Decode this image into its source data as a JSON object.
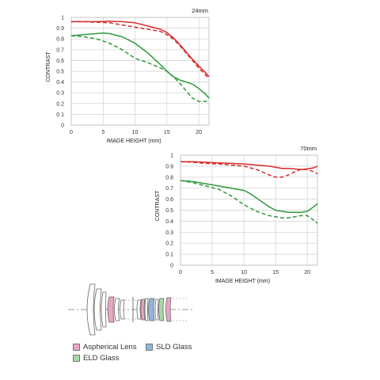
{
  "chart_data": [
    {
      "type": "line",
      "title": "24mm",
      "xlabel": "IMAGE HEIGHT (mm)",
      "ylabel": "CONTRAST",
      "xlim": [
        0,
        21.6
      ],
      "ylim": [
        0,
        1
      ],
      "xticks": [
        "0",
        "5",
        "10",
        "15",
        "20"
      ],
      "yticks": [
        "0",
        "0.1",
        "0.2",
        "0.3",
        "0.4",
        "0.5",
        "0.6",
        "0.7",
        "0.8",
        "0.9",
        "1"
      ],
      "grid": true,
      "series": [
        {
          "color": "#d62b2b",
          "style": "solid",
          "x": [
            0,
            2,
            4,
            6,
            8,
            10,
            12,
            14,
            15,
            16,
            17,
            18,
            19,
            20,
            21,
            21.6
          ],
          "y": [
            0.96,
            0.96,
            0.96,
            0.965,
            0.96,
            0.95,
            0.92,
            0.89,
            0.86,
            0.81,
            0.75,
            0.68,
            0.61,
            0.55,
            0.49,
            0.45
          ]
        },
        {
          "color": "#d62b2b",
          "style": "dashed",
          "x": [
            0,
            2,
            4,
            6,
            8,
            10,
            12,
            14,
            15,
            16,
            17,
            18,
            19,
            20,
            21,
            21.6
          ],
          "y": [
            0.96,
            0.96,
            0.955,
            0.95,
            0.93,
            0.91,
            0.89,
            0.87,
            0.84,
            0.8,
            0.74,
            0.67,
            0.6,
            0.53,
            0.47,
            0.43
          ]
        },
        {
          "color": "#2e9a3b",
          "style": "solid",
          "x": [
            0,
            2,
            4,
            5,
            6,
            8,
            10,
            12,
            14,
            15,
            16,
            17,
            18,
            19,
            20,
            21,
            21.6
          ],
          "y": [
            0.83,
            0.84,
            0.85,
            0.855,
            0.85,
            0.82,
            0.76,
            0.67,
            0.56,
            0.5,
            0.45,
            0.42,
            0.4,
            0.38,
            0.34,
            0.29,
            0.25
          ]
        },
        {
          "color": "#2e9a3b",
          "style": "dashed",
          "x": [
            0,
            2,
            4,
            6,
            8,
            10,
            12,
            14,
            15,
            16,
            17,
            18,
            19,
            20,
            21,
            21.6
          ],
          "y": [
            0.83,
            0.82,
            0.8,
            0.76,
            0.7,
            0.62,
            0.58,
            0.53,
            0.5,
            0.45,
            0.39,
            0.32,
            0.25,
            0.22,
            0.22,
            0.23
          ]
        }
      ]
    },
    {
      "type": "line",
      "title": "70mm",
      "xlabel": "IMAGE HEIGHT (mm)",
      "ylabel": "CONTRAST",
      "xlim": [
        0,
        21.6
      ],
      "ylim": [
        0,
        1
      ],
      "xticks": [
        "0",
        "5",
        "10",
        "15",
        "20"
      ],
      "yticks": [
        "0",
        "0.1",
        "0.2",
        "0.3",
        "0.4",
        "0.5",
        "0.6",
        "0.7",
        "0.8",
        "0.9",
        "1"
      ],
      "grid": true,
      "series": [
        {
          "color": "#d62b2b",
          "style": "solid",
          "x": [
            0,
            2,
            4,
            6,
            8,
            10,
            12,
            14,
            15,
            16,
            17,
            18,
            19,
            20,
            21,
            21.6
          ],
          "y": [
            0.94,
            0.94,
            0.935,
            0.93,
            0.925,
            0.92,
            0.91,
            0.9,
            0.89,
            0.88,
            0.88,
            0.875,
            0.87,
            0.875,
            0.885,
            0.9
          ]
        },
        {
          "color": "#d62b2b",
          "style": "dashed",
          "x": [
            0,
            2,
            4,
            6,
            8,
            10,
            12,
            14,
            15,
            16,
            17,
            18,
            19,
            20,
            21,
            21.6
          ],
          "y": [
            0.94,
            0.935,
            0.925,
            0.92,
            0.91,
            0.9,
            0.87,
            0.82,
            0.8,
            0.8,
            0.82,
            0.85,
            0.87,
            0.87,
            0.85,
            0.83
          ]
        },
        {
          "color": "#2e9a3b",
          "style": "solid",
          "x": [
            0,
            2,
            4,
            6,
            8,
            10,
            11,
            12,
            13,
            14,
            15,
            16,
            17,
            18,
            19,
            20,
            21,
            21.6
          ],
          "y": [
            0.77,
            0.76,
            0.74,
            0.72,
            0.7,
            0.68,
            0.65,
            0.61,
            0.57,
            0.53,
            0.5,
            0.49,
            0.48,
            0.48,
            0.48,
            0.49,
            0.53,
            0.56
          ]
        },
        {
          "color": "#2e9a3b",
          "style": "dashed",
          "x": [
            0,
            2,
            4,
            6,
            8,
            10,
            12,
            14,
            15,
            16,
            17,
            18,
            19,
            20,
            21,
            21.6
          ],
          "y": [
            0.77,
            0.75,
            0.72,
            0.69,
            0.63,
            0.55,
            0.49,
            0.45,
            0.44,
            0.43,
            0.43,
            0.44,
            0.45,
            0.45,
            0.41,
            0.38
          ]
        }
      ]
    }
  ],
  "legend": [
    {
      "label": "Aspherical Lens",
      "color": "#e9a6c4"
    },
    {
      "label": "SLD Glass",
      "color": "#8db8dc"
    },
    {
      "label": "ELD Glass",
      "color": "#a9d8a6"
    }
  ]
}
